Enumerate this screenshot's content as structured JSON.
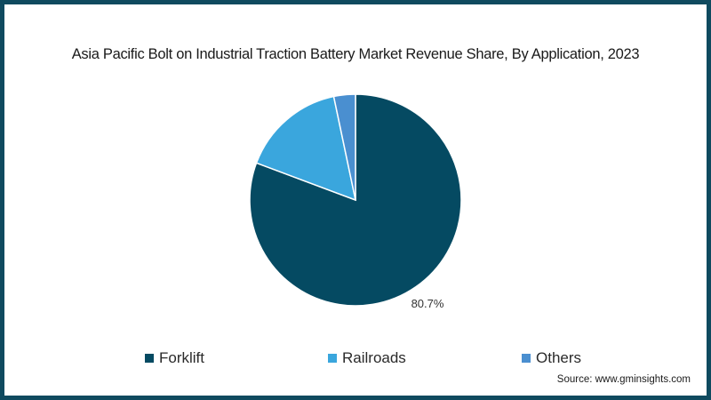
{
  "chart_data": {
    "type": "pie",
    "title": "Asia Pacific Bolt on Industrial Traction Battery Market Revenue Share, By Application, 2023",
    "categories": [
      "Forklift",
      "Railroads",
      "Others"
    ],
    "values": [
      80.7,
      16.0,
      3.3
    ],
    "colors": [
      "#054a62",
      "#3aa6dd",
      "#4a8fd0"
    ],
    "data_labels": [
      "80.7%",
      "",
      ""
    ],
    "start_angle": "12 o'clock",
    "direction": "clockwise",
    "legend_position": "bottom",
    "source": "Source: www.gminsights.com"
  },
  "title": "Asia Pacific Bolt on Industrial Traction Battery Market Revenue Share, By Application, 2023",
  "labels": {
    "forklift_pct": "80.7%"
  },
  "legend": [
    {
      "label": "Forklift",
      "color": "#054a62"
    },
    {
      "label": "Railroads",
      "color": "#3aa6dd"
    },
    {
      "label": "Others",
      "color": "#4a8fd0"
    }
  ],
  "source": "Source: www.gminsights.com",
  "border_color": "#0f4a5f"
}
